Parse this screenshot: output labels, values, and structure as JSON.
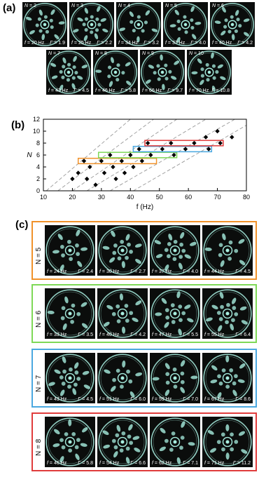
{
  "panel_a": {
    "label": "(a)",
    "images": [
      {
        "N": "2",
        "f": "20 Hz",
        "gamma": "1.9"
      },
      {
        "N": "3",
        "f": "25 Hz",
        "gamma": "2.2"
      },
      {
        "N": "4",
        "f": "34 Hz",
        "gamma": "3.2"
      },
      {
        "N": "5",
        "f": "37 Hz",
        "gamma": "4.0"
      },
      {
        "N": "6",
        "f": "40 Hz",
        "gamma": "4.2"
      },
      {
        "N": "7",
        "f": "43 Hz",
        "gamma": "4.5"
      },
      {
        "N": "8",
        "f": "46 Hz",
        "gamma": "5.8"
      },
      {
        "N": "9",
        "f": "66 Hz",
        "gamma": "9.7"
      },
      {
        "N": "10",
        "f": "70 Hz",
        "gamma": "10.8"
      }
    ]
  },
  "panel_b": {
    "label": "(b)"
  },
  "panel_c": {
    "label": "(c)",
    "rows": [
      {
        "N_label": "N = 5",
        "color": "#f0922b",
        "images": [
          {
            "f": "24 Hz",
            "gamma": "2.4"
          },
          {
            "f": "30 Hz",
            "gamma": "2.7"
          },
          {
            "f": "37 Hz",
            "gamma": "4.0"
          },
          {
            "f": "44 Hz",
            "gamma": "4.5"
          }
        ]
      },
      {
        "N_label": "N = 6",
        "color": "#7ed957",
        "images": [
          {
            "f": "33 Hz",
            "gamma": "3.5"
          },
          {
            "f": "40 Hz",
            "gamma": "4.2"
          },
          {
            "f": "47 Hz",
            "gamma": "5.5"
          },
          {
            "f": "55 Hz",
            "gamma": "6.4"
          }
        ]
      },
      {
        "N_label": "N = 7",
        "color": "#4aa8e0",
        "images": [
          {
            "f": "43 Hz",
            "gamma": "4.5"
          },
          {
            "f": "51 Hz",
            "gamma": "6.0"
          },
          {
            "f": "59 Hz",
            "gamma": "7.0"
          },
          {
            "f": "67 Hz",
            "gamma": "8.6"
          }
        ]
      },
      {
        "N_label": "N = 8",
        "color": "#e03c3c",
        "images": [
          {
            "f": "46 Hz",
            "gamma": "5.8"
          },
          {
            "f": "54 Hz",
            "gamma": "6.6"
          },
          {
            "f": "62 Hz",
            "gamma": "7.1"
          },
          {
            "f": "71 Hz",
            "gamma": "11.2"
          }
        ]
      }
    ]
  },
  "chart_data": {
    "type": "scatter",
    "xlabel": "f (Hz)",
    "ylabel": "N",
    "xlim": [
      10,
      80
    ],
    "ylim": [
      0,
      12
    ],
    "xticks": [
      "10",
      "20",
      "30",
      "40",
      "50",
      "60",
      "70",
      "80"
    ],
    "yticks": [
      "0",
      "2",
      "4",
      "6",
      "8",
      "10",
      "12"
    ],
    "grid": false,
    "points": [
      {
        "x": 20,
        "y": 2
      },
      {
        "x": 22,
        "y": 3
      },
      {
        "x": 24,
        "y": 5
      },
      {
        "x": 25,
        "y": 2
      },
      {
        "x": 26,
        "y": 4
      },
      {
        "x": 28,
        "y": 1
      },
      {
        "x": 30,
        "y": 5
      },
      {
        "x": 31,
        "y": 3
      },
      {
        "x": 33,
        "y": 6
      },
      {
        "x": 34,
        "y": 4
      },
      {
        "x": 35,
        "y": 2
      },
      {
        "x": 37,
        "y": 5
      },
      {
        "x": 38,
        "y": 3
      },
      {
        "x": 40,
        "y": 6
      },
      {
        "x": 41,
        "y": 4
      },
      {
        "x": 43,
        "y": 7
      },
      {
        "x": 44,
        "y": 5
      },
      {
        "x": 46,
        "y": 8
      },
      {
        "x": 47,
        "y": 6
      },
      {
        "x": 51,
        "y": 7
      },
      {
        "x": 54,
        "y": 8
      },
      {
        "x": 55,
        "y": 6
      },
      {
        "x": 59,
        "y": 7
      },
      {
        "x": 62,
        "y": 8
      },
      {
        "x": 66,
        "y": 9
      },
      {
        "x": 67,
        "y": 7
      },
      {
        "x": 70,
        "y": 10
      },
      {
        "x": 71,
        "y": 8
      },
      {
        "x": 75,
        "y": 9
      }
    ],
    "dashed_lines": [
      {
        "x": [
          11,
          40
        ],
        "y": [
          0,
          12
        ]
      },
      {
        "x": [
          15,
          48
        ],
        "y": [
          0,
          12
        ]
      },
      {
        "x": [
          20,
          56
        ],
        "y": [
          0,
          12
        ]
      },
      {
        "x": [
          25,
          66
        ],
        "y": [
          0,
          12
        ]
      },
      {
        "x": [
          33,
          76
        ],
        "y": [
          0,
          12
        ]
      },
      {
        "x": [
          41,
          80
        ],
        "y": [
          0,
          11
        ]
      }
    ],
    "boxes": [
      {
        "N": 5,
        "x": [
          22,
          49
        ],
        "color": "#f0922b"
      },
      {
        "N": 6,
        "x": [
          29,
          56
        ],
        "color": "#7ed957"
      },
      {
        "N": 7,
        "x": [
          41,
          68
        ],
        "color": "#4aa8e0"
      },
      {
        "N": 8,
        "x": [
          45,
          72
        ],
        "color": "#e03c3c"
      }
    ]
  }
}
